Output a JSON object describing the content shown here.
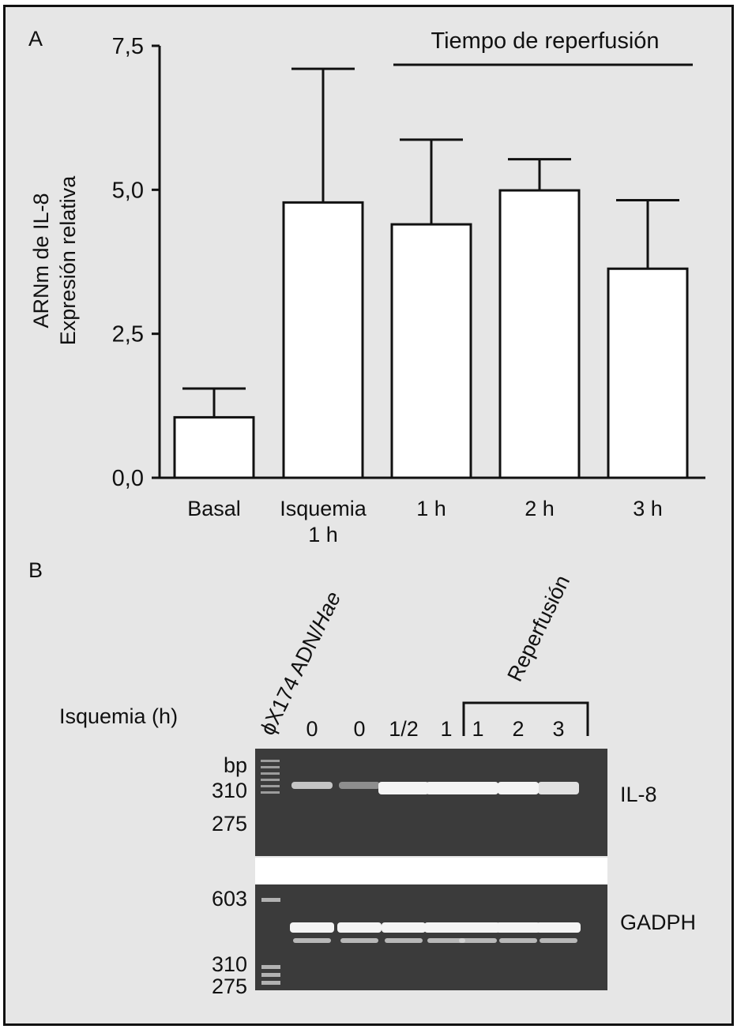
{
  "panel_a": {
    "label": "A",
    "annotation": "Tiempo de reperfusión"
  },
  "panel_b": {
    "label": "B",
    "marker_lane_label": "ϕX174 ADN/",
    "marker_lane_italic": "Hae",
    "reperfusion_label": "Reperfusión",
    "ischemia_row_label": "Isquemia (h)",
    "lane_values": [
      "0",
      "0",
      "1/2",
      "1",
      "1",
      "2",
      "3"
    ],
    "bp_label": "bp",
    "top_gel": {
      "markers": [
        "310",
        "275"
      ],
      "band_label": "IL-8"
    },
    "bottom_gel": {
      "markers": [
        "603",
        "310",
        "275"
      ],
      "band_label": "GADPH"
    }
  },
  "chart_data": {
    "type": "bar",
    "categories": [
      "Basal",
      "Isquemia\n1 h",
      "1 h",
      "2 h",
      "3 h"
    ],
    "values": [
      1.05,
      4.78,
      4.4,
      4.99,
      3.63
    ],
    "error_upper": [
      1.55,
      7.1,
      5.87,
      5.53,
      4.82
    ],
    "title": "",
    "xlabel": "",
    "ylabel": "ARNm de IL-8\nExpresión relativa",
    "ylim": [
      0,
      7.5
    ],
    "yticks": [
      "0,0",
      "2,5",
      "5,0",
      "7,5"
    ],
    "colors": {
      "bar_fill": "#ffffff",
      "stroke": "#111111"
    }
  },
  "colors": {
    "panel_background": "#e6e6e6",
    "gel_background": "#3b3b3b",
    "band": "#f4f4f4"
  }
}
